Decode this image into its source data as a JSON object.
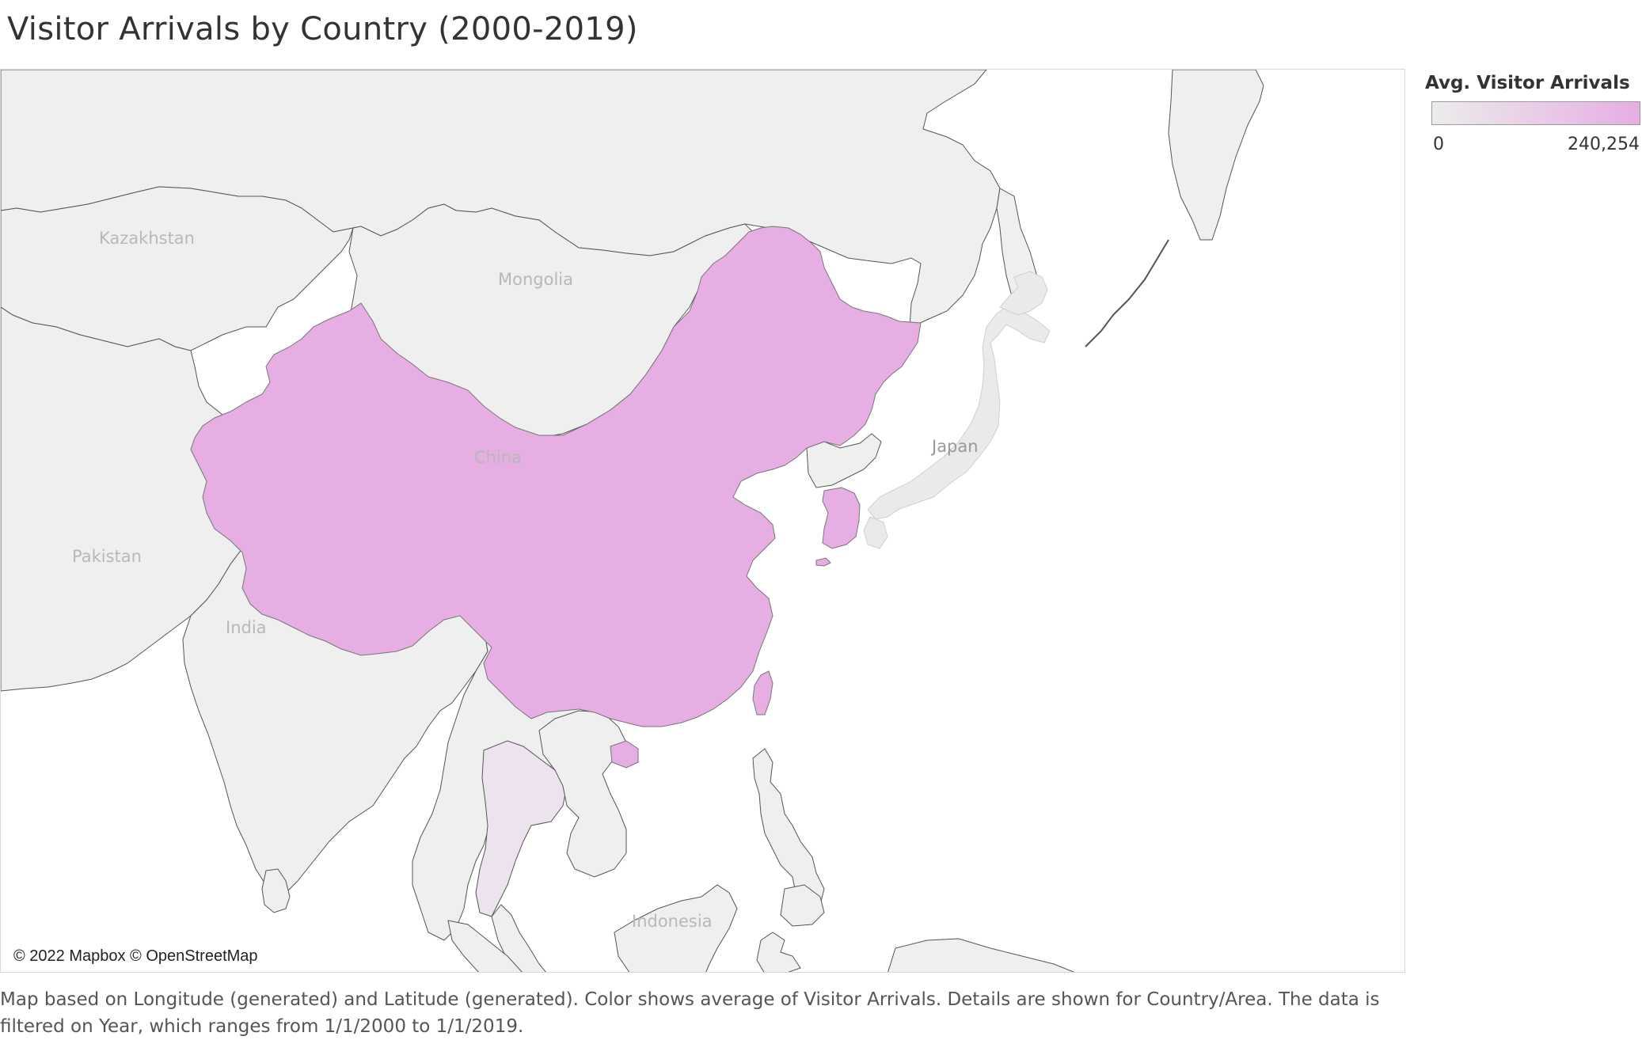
{
  "page": {
    "title": "Visitor Arrivals by Country (2000-2019)",
    "caption": "Map based on Longitude (generated) and Latitude (generated).  Color shows average of Visitor Arrivals.  Details are shown for Country/Area. The data is filtered on Year, which ranges from 1/1/2000 to 1/1/2019."
  },
  "legend": {
    "title": "Avg. Visitor Arrivals",
    "min_label": "0",
    "max_label": "240,254",
    "min_color": "#ececec",
    "max_color": "#e6aee3"
  },
  "map": {
    "attribution": "© 2022 Mapbox © OpenStreetMap",
    "colors": {
      "ocean": "#ffffff",
      "land": "#efefef",
      "border": "#555555",
      "highlight": "#e6aee3",
      "thailand": "#ede3ee",
      "label": "#b8b8b8"
    },
    "country_labels": {
      "kazakhstan": "Kazakhstan",
      "mongolia": "Mongolia",
      "china": "China",
      "japan": "Japan",
      "pakistan": "Pakistan",
      "india": "India",
      "indonesia": "Indonesia"
    },
    "highlighted_countries": [
      "China",
      "South Korea",
      "Taiwan"
    ]
  }
}
